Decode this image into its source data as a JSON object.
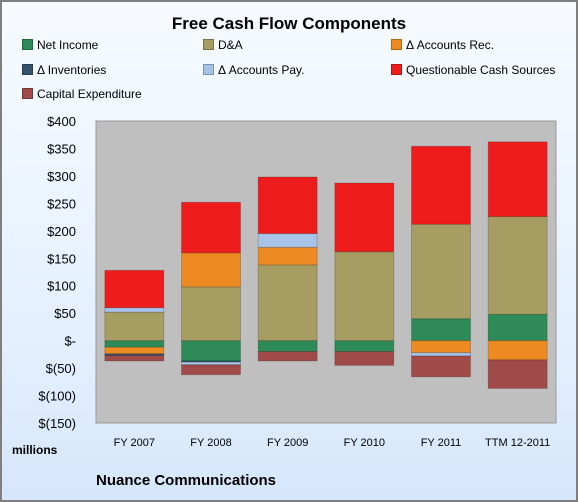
{
  "chart_data": {
    "type": "bar",
    "stacked": true,
    "title": "Free Cash Flow Components",
    "units_label": "millions",
    "footer": "Nuance Communications",
    "categories": [
      "FY 2007",
      "FY 2008",
      "FY 2009",
      "FY 2010",
      "FY 2011",
      "TTM 12-2011"
    ],
    "ylim": [
      -150,
      400
    ],
    "yticks": [
      400,
      350,
      300,
      250,
      200,
      150,
      100,
      50,
      0,
      -50,
      -100,
      -150
    ],
    "ytick_labels": [
      "$400",
      "$350",
      "$300",
      "$250",
      "$200",
      "$150",
      "$100",
      "$50",
      "$-",
      "$(50)",
      "$(100)",
      "$(150)"
    ],
    "grid": false,
    "legend_position": "top",
    "series": [
      {
        "name": "Net Income",
        "color": "#2e8b57",
        "values": [
          -12,
          -37,
          -20,
          -20,
          40,
          48
        ]
      },
      {
        "name": "D&A",
        "color": "#a69d63",
        "values": [
          52,
          98,
          138,
          162,
          172,
          178
        ]
      },
      {
        "name": "Δ Accounts Rec.",
        "color": "#ed8a22",
        "values": [
          -12,
          62,
          32,
          0,
          -22,
          -35
        ]
      },
      {
        "name": "Δ Inventories",
        "color": "#33536e",
        "values": [
          -3,
          -2,
          0,
          0,
          0,
          0
        ]
      },
      {
        "name": "Δ Accounts Pay.",
        "color": "#a7c4e8",
        "values": [
          8,
          -5,
          25,
          0,
          -6,
          0
        ]
      },
      {
        "name": "Questionable Cash Sources",
        "color": "#ee1c1c",
        "values": [
          68,
          92,
          103,
          125,
          142,
          136
        ]
      },
      {
        "name": "Capital Expenditure",
        "color": "#a04a4a",
        "values": [
          -10,
          -18,
          -17,
          -25,
          -38,
          -52
        ]
      }
    ]
  }
}
